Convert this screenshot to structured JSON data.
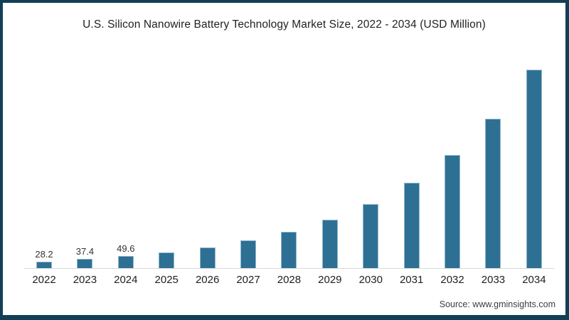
{
  "header": {
    "title": "U.S. Silicon Nanowire Battery Technology Market Size, 2022 - 2034 (USD Million)"
  },
  "footer": {
    "source": "Source: www.gminsights.com"
  },
  "colors": {
    "frame": "#133f56",
    "bar": "#2e7094",
    "bar_edge": "#b0d0e0",
    "axis_line": "#d8d8d8",
    "title_text": "#222222",
    "label_text": "#333333",
    "source_text": "#3d3d3d",
    "background": "#ffffff"
  },
  "chart_data": {
    "type": "bar",
    "title": "U.S. Silicon Nanowire Battery Technology Market Size, 2022 - 2034 (USD Million)",
    "xlabel": "",
    "ylabel": "USD Million",
    "categories": [
      "2022",
      "2023",
      "2024",
      "2025",
      "2026",
      "2027",
      "2028",
      "2029",
      "2030",
      "2031",
      "2032",
      "2033",
      "2034"
    ],
    "values": [
      28.2,
      37.4,
      49.6,
      65.8,
      87.2,
      115.6,
      153.3,
      203.3,
      269.6,
      357.5,
      474.1,
      628.6,
      833.6
    ],
    "data_labels": [
      "28.2",
      "37.4",
      "49.6",
      "",
      "",
      "",
      "",
      "",
      "",
      "",
      "",
      "",
      ""
    ],
    "labeled_points": {
      "2022": 28.2,
      "2023": 37.4,
      "2024": 49.6
    },
    "ylim": [
      0,
      850
    ],
    "grid": false,
    "legend": false,
    "y_axis_visible": false,
    "x_axis_line_visible": true,
    "bar_color": "#2e7094"
  }
}
